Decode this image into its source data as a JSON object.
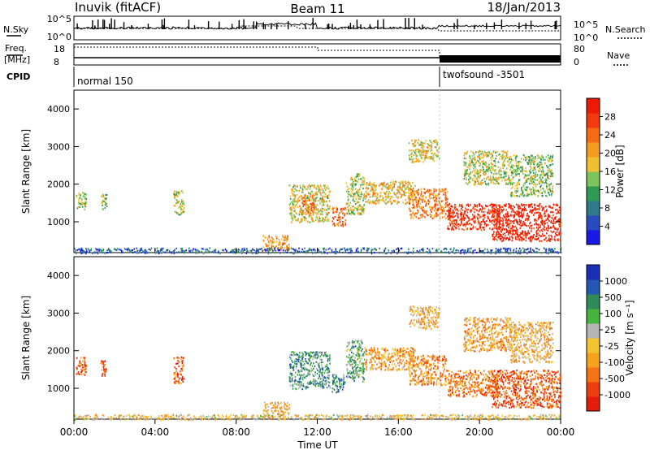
{
  "header": {
    "station": "Inuvik (fitACF)",
    "beam": "Beam 11",
    "date": "18/Jan/2013"
  },
  "noise_panel": {
    "left_label": "N.Sky",
    "right_label": "N.Search",
    "left_ticks": [
      "10^5",
      "10^0"
    ],
    "right_ticks": [
      "10^5",
      "10^0"
    ]
  },
  "freq_panel": {
    "left_label_line1": "Freq.",
    "left_label_line2": "[MHz]",
    "right_label": "Nave",
    "left_ticks": [
      "18",
      "8"
    ],
    "right_ticks": [
      "80",
      "0"
    ]
  },
  "cpid": {
    "label": "CPID",
    "segments": [
      {
        "name": "normal 150",
        "start_hour": 0
      },
      {
        "name": "twofsound -3501",
        "start_hour": 18
      }
    ]
  },
  "time_axis": {
    "label": "Time UT",
    "ticks": [
      "00:00",
      "04:00",
      "08:00",
      "12:00",
      "16:00",
      "20:00",
      "00:00"
    ]
  },
  "colors": {
    "power_scale": [
      "#1818e8",
      "#284cc0",
      "#2d7a8a",
      "#2e9a52",
      "#7dc45a",
      "#f0c030",
      "#f79a20",
      "#f56a12",
      "#f23a0c",
      "#ee1a06"
    ],
    "velocity_scale": [
      "#1a2fb8",
      "#2457b5",
      "#2f8c5a",
      "#45b53e",
      "#b4b4b4",
      "#f4c430",
      "#f6a21c",
      "#f47314",
      "#ec3e0d",
      "#e31d0a"
    ]
  },
  "chart_data": [
    {
      "type": "heatmap",
      "title": "Power",
      "ylabel": "Slant Range [km]",
      "xlabel": "Time UT",
      "x_range_hours": [
        0,
        24
      ],
      "ylim": [
        180,
        4500
      ],
      "yticks": [
        1000,
        2000,
        3000,
        4000
      ],
      "colorbar": {
        "label": "Power [dB]",
        "ticks": [
          "4",
          "8",
          "12",
          "16",
          "20",
          "24",
          "28"
        ],
        "min": 0,
        "max": 32
      },
      "regions": [
        {
          "t0": 0.1,
          "t1": 0.6,
          "r0": 1350,
          "r1": 1850,
          "level": 0.45
        },
        {
          "t0": 1.3,
          "t1": 1.6,
          "r0": 1350,
          "r1": 1750,
          "level": 0.4
        },
        {
          "t0": 4.9,
          "t1": 5.4,
          "r0": 1150,
          "r1": 1850,
          "level": 0.5
        },
        {
          "t0": 9.3,
          "t1": 10.6,
          "r0": 250,
          "r1": 650,
          "level": 0.65
        },
        {
          "t0": 10.6,
          "t1": 12.6,
          "r0": 1000,
          "r1": 2000,
          "level": 0.55
        },
        {
          "t0": 11.2,
          "t1": 11.9,
          "r0": 1200,
          "r1": 1700,
          "level": 0.75
        },
        {
          "t0": 12.7,
          "t1": 13.4,
          "r0": 900,
          "r1": 1400,
          "level": 0.75
        },
        {
          "t0": 13.4,
          "t1": 14.3,
          "r0": 1200,
          "r1": 2300,
          "level": 0.5
        },
        {
          "t0": 14.3,
          "t1": 16.8,
          "r0": 1500,
          "r1": 2100,
          "level": 0.58
        },
        {
          "t0": 16.5,
          "t1": 18.4,
          "r0": 1100,
          "r1": 1900,
          "level": 0.72
        },
        {
          "t0": 18.4,
          "t1": 21.0,
          "r0": 800,
          "r1": 1500,
          "level": 0.9
        },
        {
          "t0": 20.6,
          "t1": 24.0,
          "r0": 500,
          "r1": 1500,
          "level": 0.95
        },
        {
          "t0": 0.0,
          "t1": 24.0,
          "r0": 180,
          "r1": 320,
          "level": 0.2
        },
        {
          "t0": 16.5,
          "t1": 18.0,
          "r0": 2600,
          "r1": 3200,
          "level": 0.55
        },
        {
          "t0": 19.2,
          "t1": 21.5,
          "r0": 2000,
          "r1": 2900,
          "level": 0.5
        },
        {
          "t0": 21.5,
          "t1": 23.6,
          "r0": 1700,
          "r1": 2800,
          "level": 0.45
        }
      ]
    },
    {
      "type": "heatmap",
      "title": "Velocity",
      "ylabel": "Slant Range [km]",
      "xlabel": "Time UT",
      "x_range_hours": [
        0,
        24
      ],
      "ylim": [
        180,
        4500
      ],
      "yticks": [
        1000,
        2000,
        3000,
        4000
      ],
      "colorbar": {
        "label": "Velocity [m s⁻¹]",
        "ticks": [
          "1000",
          "500",
          "100",
          "25",
          "-25",
          "-100",
          "-500",
          "-1000"
        ],
        "min": -1200,
        "max": 1200
      },
      "regions": [
        {
          "t0": 0.1,
          "t1": 0.6,
          "r0": 1350,
          "r1": 1850,
          "level": 0.8
        },
        {
          "t0": 1.3,
          "t1": 1.6,
          "r0": 1350,
          "r1": 1750,
          "level": 0.8
        },
        {
          "t0": 4.9,
          "t1": 5.4,
          "r0": 1150,
          "r1": 1850,
          "level": 0.8
        },
        {
          "t0": 9.3,
          "t1": 10.6,
          "r0": 250,
          "r1": 650,
          "level": 0.6
        },
        {
          "t0": 10.6,
          "t1": 12.6,
          "r0": 1000,
          "r1": 2000,
          "level": 0.3
        },
        {
          "t0": 12.7,
          "t1": 13.4,
          "r0": 900,
          "r1": 1400,
          "level": 0.25
        },
        {
          "t0": 13.4,
          "t1": 14.3,
          "r0": 1200,
          "r1": 2300,
          "level": 0.35
        },
        {
          "t0": 14.3,
          "t1": 16.8,
          "r0": 1500,
          "r1": 2100,
          "level": 0.65
        },
        {
          "t0": 16.5,
          "t1": 18.4,
          "r0": 1100,
          "r1": 1900,
          "level": 0.7
        },
        {
          "t0": 18.4,
          "t1": 21.0,
          "r0": 800,
          "r1": 1500,
          "level": 0.75
        },
        {
          "t0": 20.6,
          "t1": 24.0,
          "r0": 500,
          "r1": 1500,
          "level": 0.82
        },
        {
          "t0": 0.0,
          "t1": 24.0,
          "r0": 180,
          "r1": 320,
          "level": 0.55
        },
        {
          "t0": 16.5,
          "t1": 18.0,
          "r0": 2600,
          "r1": 3200,
          "level": 0.6
        },
        {
          "t0": 19.2,
          "t1": 21.5,
          "r0": 2000,
          "r1": 2900,
          "level": 0.65
        },
        {
          "t0": 21.5,
          "t1": 23.6,
          "r0": 1700,
          "r1": 2800,
          "level": 0.6
        }
      ]
    }
  ]
}
